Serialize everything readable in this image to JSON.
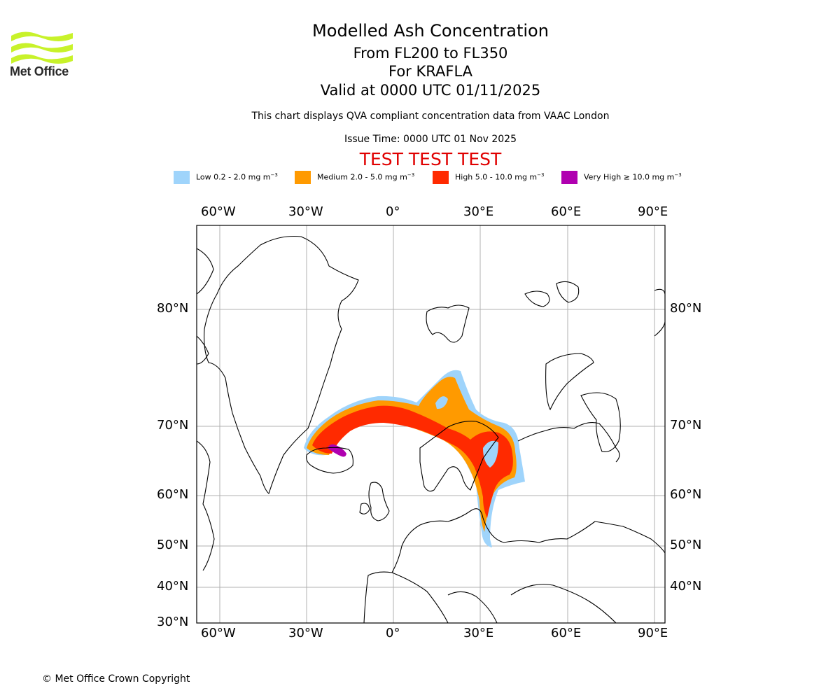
{
  "header": {
    "logo_text": "Met Office",
    "title": "Modelled Ash Concentration",
    "levels": "From FL200 to FL350",
    "volcano": "For KRAFLA",
    "valid": "Valid at 0000 UTC 01/11/2025",
    "note": "This chart displays QVA compliant concentration data from VAAC London",
    "issue": "Issue Time: 0000 UTC 01 Nov 2025",
    "test_banner": "TEST TEST TEST"
  },
  "legend": [
    {
      "label": "Low 0.2 - 2.0 mg m",
      "sup": "−3",
      "color": "#9fd4fb"
    },
    {
      "label": "Medium 2.0 - 5.0 mg m",
      "sup": "−3",
      "color": "#ff9a00"
    },
    {
      "label": "High 5.0 - 10.0 mg m",
      "sup": "−3",
      "color": "#ff2a00"
    },
    {
      "label": "Very High  ≥  10.0 mg m",
      "sup": "−3",
      "color": "#b000b0"
    }
  ],
  "map": {
    "lon_ticks": [
      "60°W",
      "30°W",
      "0°",
      "30°E",
      "60°E",
      "90°E"
    ],
    "lat_ticks": [
      "80°N",
      "70°N",
      "60°N",
      "50°N",
      "40°N",
      "30°N"
    ],
    "colors": {
      "ocean": "#ffffff",
      "grid": "#b0b0b0",
      "coast": "#000000"
    }
  },
  "footer": {
    "copyright": "© Met Office Crown Copyright"
  }
}
